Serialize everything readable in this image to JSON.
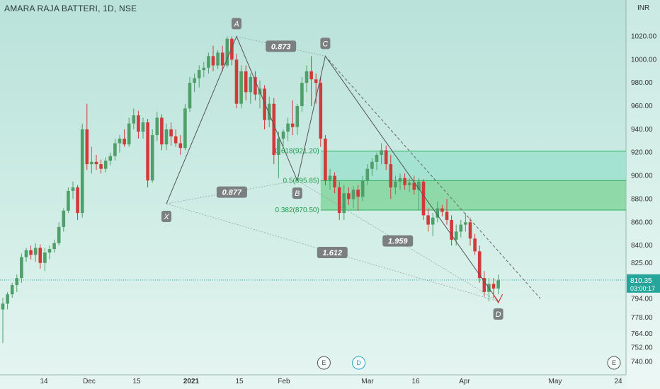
{
  "header": {
    "title": "AMARA RAJA BATTERI, 1D, NSE"
  },
  "axis": {
    "currency": "INR"
  },
  "price_badge": {
    "price": "810.35",
    "countdown": "03:00:17",
    "color": "#26a69a"
  },
  "colors": {
    "up": "#4e9f69",
    "down": "#d23a3a",
    "fib_zone": "#7fd59a",
    "fib_zone_upper": "#9ee0cf",
    "pattern_line": "#555555"
  },
  "chart_data": {
    "type": "candlestick",
    "title": "AMARA RAJA BATTERI, 1D, NSE",
    "ylabel": "INR",
    "ylim": [
      736,
      1044
    ],
    "yticks": [
      "1020.00",
      "1000.00",
      "980.00",
      "960.00",
      "940.00",
      "920.00",
      "900.00",
      "880.00",
      "860.00",
      "840.00",
      "825.00",
      "810.00",
      "794.00",
      "778.00",
      "764.00",
      "752.00",
      "740.00"
    ],
    "xticks": [
      {
        "label": "14",
        "bold": false
      },
      {
        "label": "Dec",
        "bold": false
      },
      {
        "label": "15",
        "bold": false
      },
      {
        "label": "2021",
        "bold": true
      },
      {
        "label": "15",
        "bold": false
      },
      {
        "label": "Feb",
        "bold": false
      },
      {
        "label": "Mar",
        "bold": false
      },
      {
        "label": "16",
        "bold": false
      },
      {
        "label": "Apr",
        "bold": false
      },
      {
        "label": "May",
        "bold": false
      },
      {
        "label": "24",
        "bold": false
      }
    ],
    "candles": [
      {
        "o": 785,
        "h": 795,
        "l": 756,
        "c": 790
      },
      {
        "o": 790,
        "h": 800,
        "l": 785,
        "c": 798
      },
      {
        "o": 798,
        "h": 808,
        "l": 795,
        "c": 806
      },
      {
        "o": 806,
        "h": 815,
        "l": 800,
        "c": 812
      },
      {
        "o": 812,
        "h": 833,
        "l": 808,
        "c": 830
      },
      {
        "o": 830,
        "h": 838,
        "l": 826,
        "c": 836
      },
      {
        "o": 836,
        "h": 840,
        "l": 828,
        "c": 832
      },
      {
        "o": 832,
        "h": 842,
        "l": 826,
        "c": 838
      },
      {
        "o": 838,
        "h": 841,
        "l": 820,
        "c": 825
      },
      {
        "o": 825,
        "h": 838,
        "l": 818,
        "c": 834
      },
      {
        "o": 834,
        "h": 840,
        "l": 828,
        "c": 837
      },
      {
        "o": 837,
        "h": 845,
        "l": 834,
        "c": 842
      },
      {
        "o": 842,
        "h": 860,
        "l": 840,
        "c": 856
      },
      {
        "o": 856,
        "h": 872,
        "l": 852,
        "c": 870
      },
      {
        "o": 870,
        "h": 890,
        "l": 868,
        "c": 887
      },
      {
        "o": 887,
        "h": 895,
        "l": 880,
        "c": 890
      },
      {
        "o": 890,
        "h": 892,
        "l": 862,
        "c": 868
      },
      {
        "o": 868,
        "h": 945,
        "l": 864,
        "c": 940
      },
      {
        "o": 940,
        "h": 962,
        "l": 905,
        "c": 910
      },
      {
        "o": 910,
        "h": 925,
        "l": 902,
        "c": 912
      },
      {
        "o": 912,
        "h": 918,
        "l": 905,
        "c": 910
      },
      {
        "o": 910,
        "h": 914,
        "l": 902,
        "c": 906
      },
      {
        "o": 906,
        "h": 916,
        "l": 903,
        "c": 913
      },
      {
        "o": 913,
        "h": 920,
        "l": 909,
        "c": 917
      },
      {
        "o": 917,
        "h": 932,
        "l": 913,
        "c": 928
      },
      {
        "o": 928,
        "h": 935,
        "l": 920,
        "c": 932
      },
      {
        "o": 932,
        "h": 940,
        "l": 925,
        "c": 927
      },
      {
        "o": 927,
        "h": 950,
        "l": 925,
        "c": 945
      },
      {
        "o": 945,
        "h": 958,
        "l": 940,
        "c": 952
      },
      {
        "o": 952,
        "h": 956,
        "l": 932,
        "c": 938
      },
      {
        "o": 938,
        "h": 950,
        "l": 932,
        "c": 946
      },
      {
        "o": 946,
        "h": 949,
        "l": 890,
        "c": 896
      },
      {
        "o": 896,
        "h": 940,
        "l": 894,
        "c": 935
      },
      {
        "o": 935,
        "h": 955,
        "l": 930,
        "c": 950
      },
      {
        "o": 950,
        "h": 953,
        "l": 922,
        "c": 927
      },
      {
        "o": 927,
        "h": 945,
        "l": 922,
        "c": 940
      },
      {
        "o": 940,
        "h": 946,
        "l": 926,
        "c": 934
      },
      {
        "o": 934,
        "h": 940,
        "l": 925,
        "c": 928
      },
      {
        "o": 928,
        "h": 935,
        "l": 918,
        "c": 924
      },
      {
        "o": 924,
        "h": 962,
        "l": 922,
        "c": 958
      },
      {
        "o": 958,
        "h": 985,
        "l": 955,
        "c": 980
      },
      {
        "o": 980,
        "h": 988,
        "l": 972,
        "c": 984
      },
      {
        "o": 984,
        "h": 995,
        "l": 976,
        "c": 991
      },
      {
        "o": 991,
        "h": 998,
        "l": 985,
        "c": 993
      },
      {
        "o": 993,
        "h": 1006,
        "l": 988,
        "c": 1003
      },
      {
        "o": 1003,
        "h": 1012,
        "l": 990,
        "c": 995
      },
      {
        "o": 995,
        "h": 1008,
        "l": 992,
        "c": 1006
      },
      {
        "o": 1006,
        "h": 1012,
        "l": 990,
        "c": 995
      },
      {
        "o": 995,
        "h": 1020,
        "l": 993,
        "c": 1018
      },
      {
        "o": 1018,
        "h": 1020,
        "l": 995,
        "c": 1000
      },
      {
        "o": 1000,
        "h": 1005,
        "l": 958,
        "c": 962
      },
      {
        "o": 962,
        "h": 995,
        "l": 958,
        "c": 990
      },
      {
        "o": 990,
        "h": 995,
        "l": 965,
        "c": 972
      },
      {
        "o": 972,
        "h": 988,
        "l": 962,
        "c": 985
      },
      {
        "o": 985,
        "h": 990,
        "l": 965,
        "c": 970
      },
      {
        "o": 970,
        "h": 982,
        "l": 958,
        "c": 975
      },
      {
        "o": 975,
        "h": 978,
        "l": 940,
        "c": 948
      },
      {
        "o": 948,
        "h": 968,
        "l": 942,
        "c": 962
      },
      {
        "o": 962,
        "h": 967,
        "l": 910,
        "c": 918
      },
      {
        "o": 918,
        "h": 938,
        "l": 898,
        "c": 932
      },
      {
        "o": 932,
        "h": 940,
        "l": 925,
        "c": 938
      },
      {
        "o": 938,
        "h": 950,
        "l": 930,
        "c": 945
      },
      {
        "o": 945,
        "h": 965,
        "l": 935,
        "c": 942
      },
      {
        "o": 942,
        "h": 962,
        "l": 935,
        "c": 960
      },
      {
        "o": 960,
        "h": 985,
        "l": 955,
        "c": 980
      },
      {
        "o": 980,
        "h": 995,
        "l": 972,
        "c": 990
      },
      {
        "o": 990,
        "h": 1003,
        "l": 960,
        "c": 983
      },
      {
        "o": 983,
        "h": 988,
        "l": 962,
        "c": 980
      },
      {
        "o": 980,
        "h": 985,
        "l": 925,
        "c": 932
      },
      {
        "o": 932,
        "h": 935,
        "l": 892,
        "c": 896
      },
      {
        "o": 896,
        "h": 906,
        "l": 888,
        "c": 900
      },
      {
        "o": 900,
        "h": 903,
        "l": 885,
        "c": 890
      },
      {
        "o": 890,
        "h": 895,
        "l": 862,
        "c": 868
      },
      {
        "o": 868,
        "h": 892,
        "l": 862,
        "c": 885
      },
      {
        "o": 885,
        "h": 890,
        "l": 875,
        "c": 880
      },
      {
        "o": 880,
        "h": 891,
        "l": 872,
        "c": 888
      },
      {
        "o": 888,
        "h": 892,
        "l": 870,
        "c": 882
      },
      {
        "o": 882,
        "h": 900,
        "l": 878,
        "c": 896
      },
      {
        "o": 896,
        "h": 910,
        "l": 892,
        "c": 906
      },
      {
        "o": 906,
        "h": 915,
        "l": 900,
        "c": 912
      },
      {
        "o": 912,
        "h": 920,
        "l": 905,
        "c": 918
      },
      {
        "o": 918,
        "h": 928,
        "l": 910,
        "c": 922
      },
      {
        "o": 922,
        "h": 926,
        "l": 905,
        "c": 910
      },
      {
        "o": 910,
        "h": 918,
        "l": 880,
        "c": 890
      },
      {
        "o": 890,
        "h": 900,
        "l": 884,
        "c": 895
      },
      {
        "o": 895,
        "h": 902,
        "l": 888,
        "c": 898
      },
      {
        "o": 898,
        "h": 902,
        "l": 888,
        "c": 892
      },
      {
        "o": 892,
        "h": 898,
        "l": 886,
        "c": 894
      },
      {
        "o": 894,
        "h": 900,
        "l": 884,
        "c": 888
      },
      {
        "o": 888,
        "h": 898,
        "l": 870,
        "c": 895
      },
      {
        "o": 895,
        "h": 897,
        "l": 862,
        "c": 866
      },
      {
        "o": 866,
        "h": 872,
        "l": 852,
        "c": 858
      },
      {
        "o": 858,
        "h": 868,
        "l": 848,
        "c": 864
      },
      {
        "o": 864,
        "h": 878,
        "l": 860,
        "c": 872
      },
      {
        "o": 872,
        "h": 875,
        "l": 865,
        "c": 869
      },
      {
        "o": 869,
        "h": 880,
        "l": 858,
        "c": 862
      },
      {
        "o": 862,
        "h": 866,
        "l": 840,
        "c": 845
      },
      {
        "o": 845,
        "h": 858,
        "l": 840,
        "c": 852
      },
      {
        "o": 852,
        "h": 862,
        "l": 847,
        "c": 858
      },
      {
        "o": 858,
        "h": 868,
        "l": 852,
        "c": 860
      },
      {
        "o": 860,
        "h": 864,
        "l": 840,
        "c": 846
      },
      {
        "o": 846,
        "h": 850,
        "l": 832,
        "c": 835
      },
      {
        "o": 835,
        "h": 840,
        "l": 808,
        "c": 812
      },
      {
        "o": 812,
        "h": 818,
        "l": 796,
        "c": 800
      },
      {
        "o": 800,
        "h": 812,
        "l": 792,
        "c": 807
      },
      {
        "o": 807,
        "h": 812,
        "l": 795,
        "c": 803
      },
      {
        "o": 803,
        "h": 815,
        "l": 798,
        "c": 810
      }
    ],
    "pattern": {
      "points": [
        {
          "label": "X",
          "i": 35,
          "price": 876
        },
        {
          "label": "A",
          "i": 50,
          "price": 1020
        },
        {
          "label": "B",
          "i": 63,
          "price": 896
        },
        {
          "label": "C",
          "i": 69,
          "price": 1003
        },
        {
          "label": "D",
          "i": 106,
          "price": 792
        }
      ],
      "ratios": [
        {
          "label": "0.873",
          "from": "A",
          "to": "C"
        },
        {
          "label": "0.877",
          "from": "X",
          "to": "B"
        },
        {
          "label": "1.612",
          "from": "X",
          "to": "D"
        },
        {
          "label": "1.959",
          "from": "B",
          "to": "D"
        }
      ]
    },
    "fib_levels": [
      {
        "label": "0.618(921.20)",
        "value": 921.2
      },
      {
        "label": "0.5(895.85)",
        "value": 895.85
      },
      {
        "label": "0.382(870.50)",
        "value": 870.5
      }
    ],
    "current_price": 810.35,
    "events": [
      {
        "label": "E",
        "i": 69,
        "color": "#555555"
      },
      {
        "label": "D",
        "i": 76,
        "color": "#2aa0c8"
      },
      {
        "label": "E",
        "i": 128,
        "color": "#555555"
      }
    ]
  }
}
